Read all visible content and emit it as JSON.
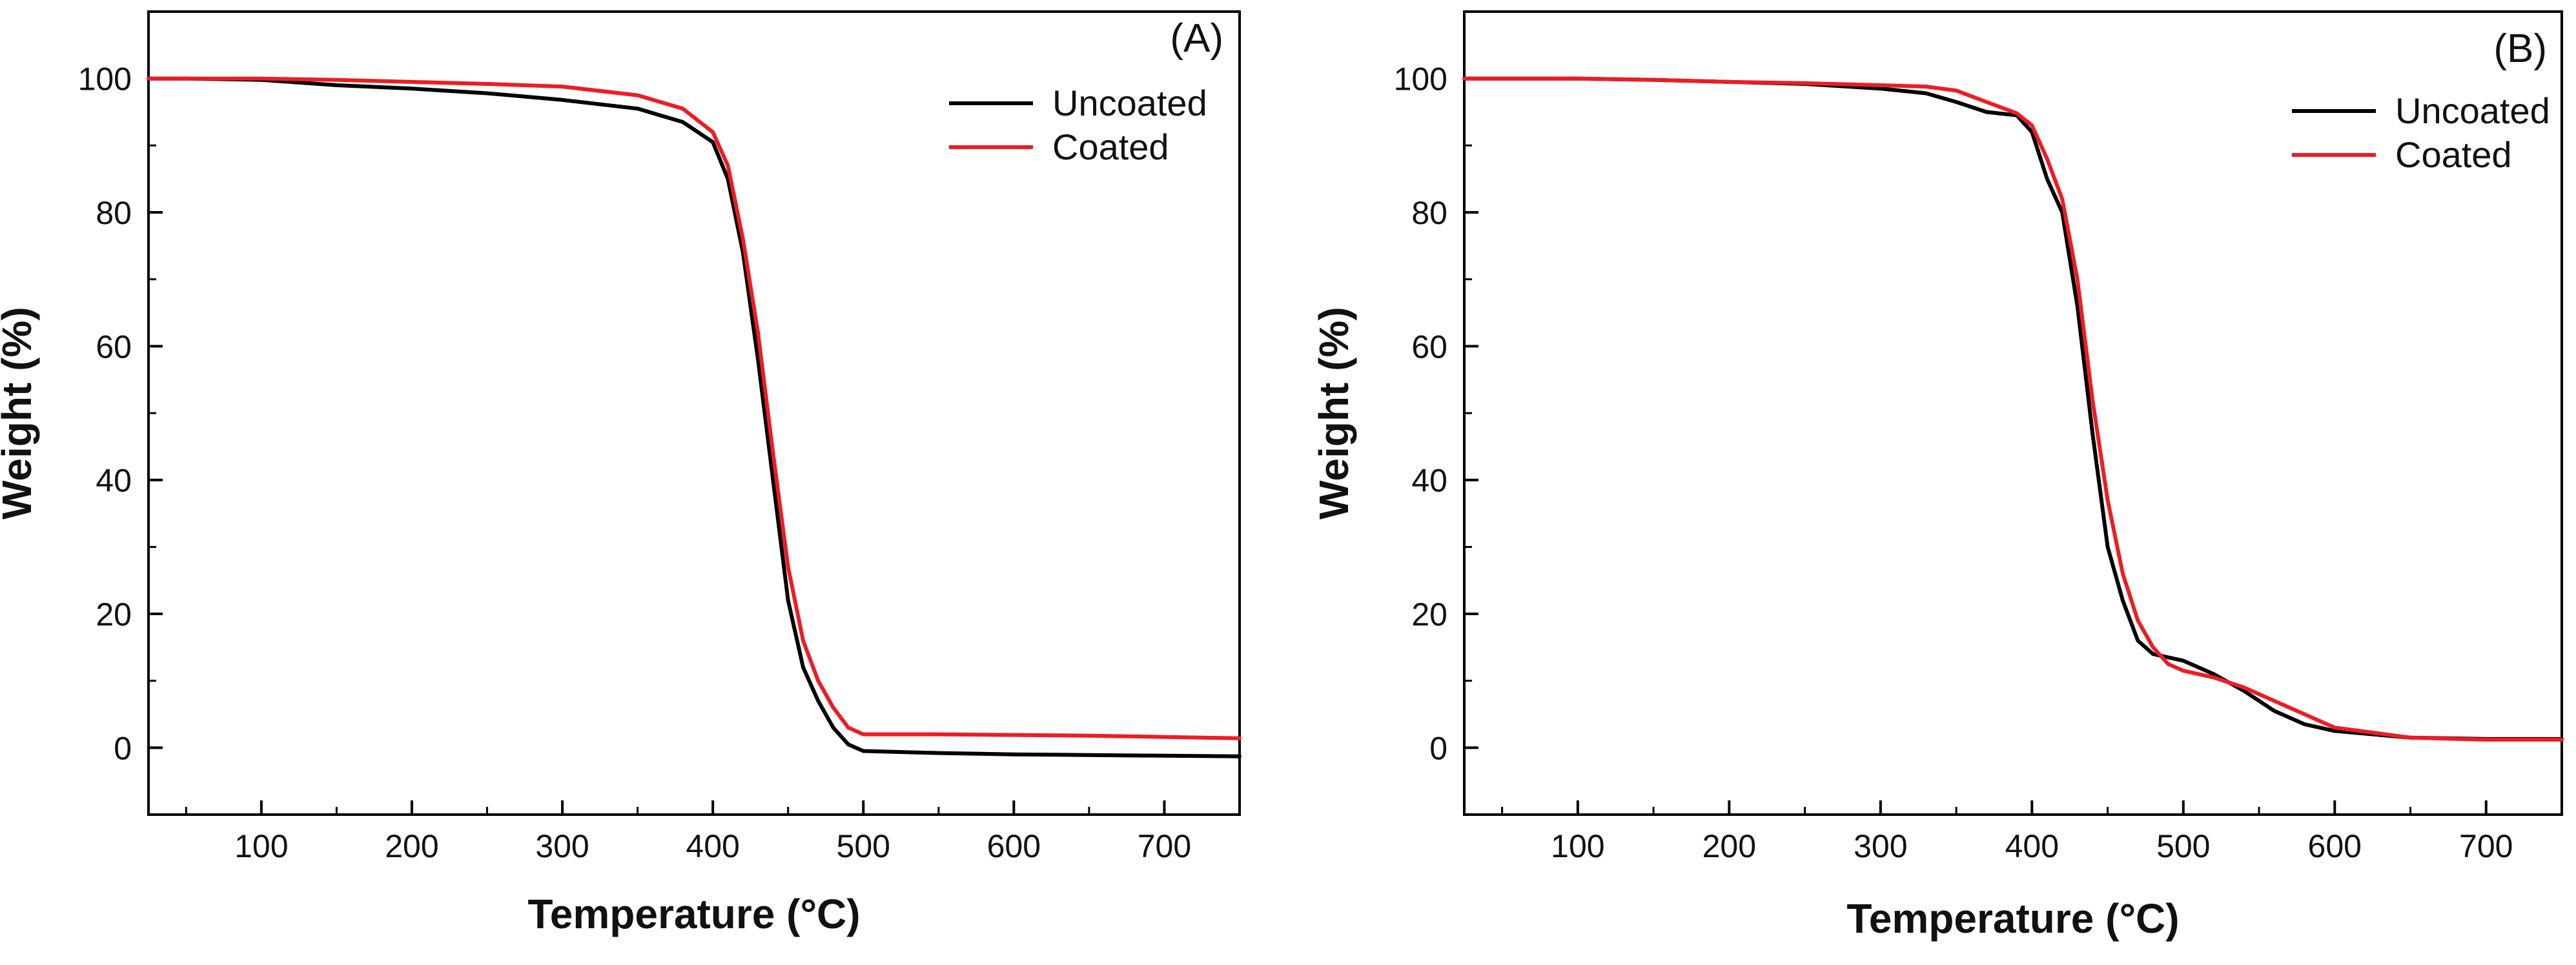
{
  "chart_data": [
    {
      "type": "line",
      "panel_label": "(A)",
      "xlabel": "Temperature (°C)",
      "ylabel": "Weight (%)",
      "xlim": [
        25,
        750
      ],
      "ylim": [
        -10,
        110
      ],
      "xticks": [
        100,
        200,
        300,
        400,
        500,
        600,
        700
      ],
      "yticks": [
        0,
        20,
        40,
        60,
        80,
        100
      ],
      "legend_position": "top-right",
      "series": [
        {
          "name": "Uncoated",
          "color": "#000000",
          "x": [
            25,
            50,
            100,
            150,
            200,
            250,
            300,
            350,
            380,
            400,
            410,
            420,
            430,
            440,
            450,
            460,
            470,
            480,
            490,
            500,
            550,
            600,
            650,
            700,
            750
          ],
          "y": [
            100,
            100,
            99.8,
            99,
            98.5,
            97.8,
            96.8,
            95.5,
            93.5,
            90.5,
            85,
            74,
            58,
            40,
            22,
            12,
            7,
            3,
            0.5,
            -0.5,
            -0.8,
            -1,
            -1.1,
            -1.2,
            -1.3
          ]
        },
        {
          "name": "Coated",
          "color": "#ee1c24",
          "x": [
            25,
            50,
            100,
            150,
            200,
            250,
            300,
            350,
            380,
            400,
            410,
            420,
            430,
            440,
            450,
            460,
            470,
            480,
            490,
            500,
            550,
            600,
            650,
            700,
            750
          ],
          "y": [
            100,
            100,
            100,
            99.8,
            99.5,
            99.2,
            98.8,
            97.5,
            95.5,
            92,
            87,
            76,
            62,
            44,
            27,
            16,
            10,
            6,
            3,
            2,
            2,
            1.9,
            1.8,
            1.6,
            1.4
          ]
        }
      ]
    },
    {
      "type": "line",
      "panel_label": "(B)",
      "xlabel": "Temperature (°C)",
      "ylabel": "Weight (%)",
      "xlim": [
        25,
        750
      ],
      "ylim": [
        -10,
        110
      ],
      "xticks": [
        100,
        200,
        300,
        400,
        500,
        600,
        700
      ],
      "yticks": [
        0,
        20,
        40,
        60,
        80,
        100
      ],
      "legend_position": "top-right",
      "series": [
        {
          "name": "Uncoated",
          "color": "#000000",
          "x": [
            25,
            50,
            100,
            150,
            200,
            250,
            300,
            330,
            350,
            370,
            390,
            400,
            410,
            420,
            430,
            440,
            450,
            460,
            470,
            480,
            490,
            500,
            510,
            520,
            540,
            560,
            580,
            600,
            650,
            700,
            750
          ],
          "y": [
            100,
            100,
            100,
            99.8,
            99.5,
            99.2,
            98.5,
            97.8,
            96.5,
            95,
            94.5,
            92,
            85,
            80,
            66,
            47,
            30,
            22,
            16,
            14,
            13.5,
            13,
            12,
            11,
            8.5,
            5.5,
            3.5,
            2.5,
            1.5,
            1.3,
            1.3
          ]
        },
        {
          "name": "Coated",
          "color": "#ee1c24",
          "x": [
            25,
            50,
            100,
            150,
            200,
            250,
            300,
            330,
            350,
            370,
            390,
            400,
            410,
            420,
            430,
            440,
            450,
            460,
            470,
            480,
            490,
            500,
            510,
            520,
            540,
            560,
            580,
            600,
            650,
            700,
            750
          ],
          "y": [
            100,
            100,
            100,
            99.8,
            99.5,
            99.3,
            99,
            98.8,
            98.2,
            96.5,
            94.8,
            93,
            88,
            82,
            70,
            52,
            37,
            26,
            19,
            15,
            12.5,
            11.5,
            11,
            10.5,
            9,
            7,
            5,
            3,
            1.5,
            1.2,
            1.2
          ]
        }
      ]
    }
  ]
}
